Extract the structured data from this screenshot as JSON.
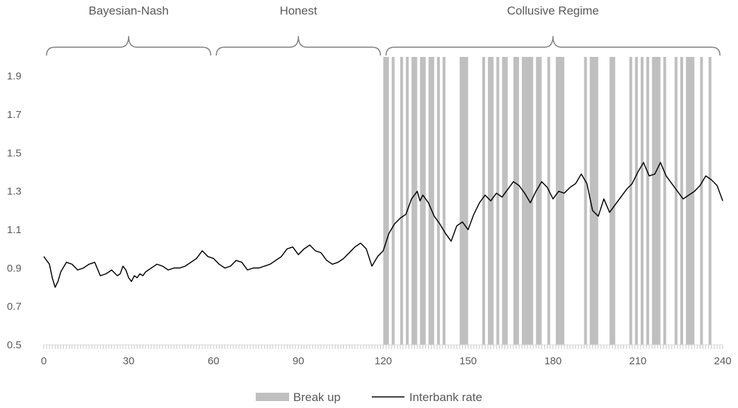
{
  "chart_data": {
    "type": "line",
    "xlim": [
      0,
      240
    ],
    "ylim": [
      0.5,
      2.0
    ],
    "x_ticks": [
      0,
      30,
      60,
      90,
      120,
      150,
      180,
      210,
      240
    ],
    "y_ticks": [
      0.5,
      0.7,
      0.9,
      1.1,
      1.3,
      1.5,
      1.7,
      1.9
    ],
    "x_tick_labels": [
      "0",
      "30",
      "60",
      "90",
      "120",
      "150",
      "180",
      "210",
      "240"
    ],
    "y_tick_labels": [
      "0.5",
      "0.7",
      "0.9",
      "1.1",
      "1.3",
      "1.5",
      "1.7",
      "1.9"
    ],
    "grid": false,
    "legend_position": "bottom",
    "regimes": [
      {
        "label": "Bayesian-Nash",
        "start": 0,
        "end": 60
      },
      {
        "label": "Honest",
        "start": 60,
        "end": 120
      },
      {
        "label": "Collusive Regime",
        "start": 120,
        "end": 240
      }
    ],
    "series": [
      {
        "name": "Interbank rate",
        "kind": "line",
        "color": "#000000",
        "x": [
          0,
          2,
          3,
          4,
          5,
          6,
          8,
          10,
          12,
          14,
          16,
          18,
          20,
          22,
          24,
          26,
          27,
          28,
          29,
          30,
          31,
          32,
          33,
          34,
          35,
          36,
          38,
          40,
          42,
          44,
          46,
          48,
          50,
          52,
          54,
          56,
          58,
          60,
          62,
          64,
          66,
          68,
          70,
          72,
          74,
          76,
          78,
          80,
          82,
          84,
          86,
          88,
          90,
          92,
          94,
          96,
          98,
          100,
          102,
          104,
          106,
          108,
          110,
          112,
          114,
          116,
          118,
          120,
          122,
          124,
          126,
          128,
          130,
          132,
          133,
          134,
          136,
          138,
          140,
          142,
          144,
          146,
          148,
          150,
          152,
          154,
          156,
          158,
          160,
          162,
          164,
          166,
          168,
          170,
          172,
          174,
          176,
          178,
          180,
          182,
          184,
          186,
          188,
          190,
          192,
          194,
          196,
          198,
          200,
          202,
          204,
          206,
          208,
          210,
          212,
          214,
          216,
          218,
          220,
          222,
          224,
          226,
          228,
          230,
          232,
          234,
          236,
          238,
          240
        ],
        "y": [
          0.96,
          0.92,
          0.85,
          0.8,
          0.83,
          0.88,
          0.93,
          0.92,
          0.89,
          0.9,
          0.92,
          0.93,
          0.86,
          0.87,
          0.89,
          0.86,
          0.87,
          0.91,
          0.89,
          0.85,
          0.83,
          0.86,
          0.85,
          0.87,
          0.86,
          0.88,
          0.9,
          0.92,
          0.91,
          0.89,
          0.9,
          0.9,
          0.91,
          0.93,
          0.95,
          0.99,
          0.96,
          0.95,
          0.92,
          0.9,
          0.91,
          0.94,
          0.93,
          0.89,
          0.9,
          0.9,
          0.91,
          0.92,
          0.94,
          0.96,
          1.0,
          1.01,
          0.97,
          1.0,
          1.02,
          0.99,
          0.98,
          0.94,
          0.92,
          0.93,
          0.95,
          0.98,
          1.01,
          1.03,
          1.0,
          0.91,
          0.96,
          0.99,
          1.08,
          1.13,
          1.16,
          1.18,
          1.26,
          1.3,
          1.25,
          1.28,
          1.24,
          1.17,
          1.13,
          1.08,
          1.04,
          1.12,
          1.14,
          1.1,
          1.18,
          1.24,
          1.28,
          1.25,
          1.29,
          1.27,
          1.31,
          1.35,
          1.33,
          1.29,
          1.24,
          1.3,
          1.35,
          1.32,
          1.26,
          1.3,
          1.29,
          1.32,
          1.34,
          1.39,
          1.34,
          1.2,
          1.17,
          1.26,
          1.19,
          1.23,
          1.27,
          1.31,
          1.34,
          1.4,
          1.45,
          1.38,
          1.39,
          1.45,
          1.38,
          1.34,
          1.3,
          1.26,
          1.28,
          1.3,
          1.33,
          1.38,
          1.36,
          1.33,
          1.25
        ]
      },
      {
        "name": "Break up",
        "kind": "bars",
        "color": "#bfbfbf",
        "intervals": [
          [
            120,
            122
          ],
          [
            123,
            124
          ],
          [
            126,
            127
          ],
          [
            128,
            129
          ],
          [
            130,
            132
          ],
          [
            133,
            135
          ],
          [
            136,
            138
          ],
          [
            139,
            140
          ],
          [
            141,
            142
          ],
          [
            147,
            150
          ],
          [
            155,
            156
          ],
          [
            157,
            159
          ],
          [
            160,
            161
          ],
          [
            162,
            164
          ],
          [
            166,
            168
          ],
          [
            169,
            173
          ],
          [
            174,
            176
          ],
          [
            178,
            179
          ],
          [
            181,
            184
          ],
          [
            191,
            192
          ],
          [
            193,
            196
          ],
          [
            200,
            202
          ],
          [
            207,
            208
          ],
          [
            209,
            210
          ],
          [
            211,
            212
          ],
          [
            213,
            214
          ],
          [
            215,
            218
          ],
          [
            219,
            220
          ],
          [
            223,
            224
          ],
          [
            225,
            226
          ],
          [
            227,
            230
          ],
          [
            232,
            233
          ],
          [
            235,
            236
          ]
        ]
      }
    ],
    "legend": [
      {
        "label": "Break up",
        "kind": "bar",
        "color": "#bfbfbf"
      },
      {
        "label": "Interbank rate",
        "kind": "line",
        "color": "#000000"
      }
    ]
  }
}
